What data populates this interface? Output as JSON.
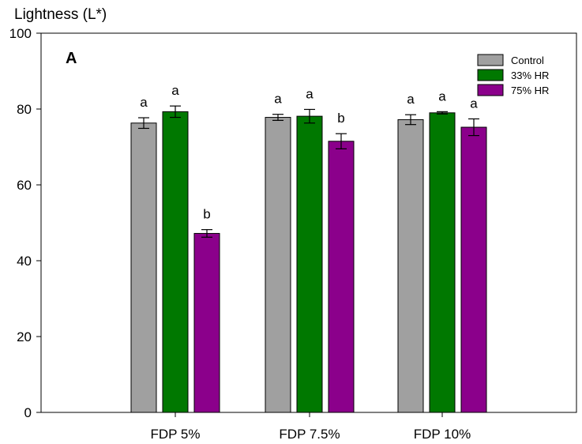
{
  "chart_data": {
    "type": "bar",
    "ylabel": "Lightness (L*)",
    "panel_label": "A",
    "categories": [
      "FDP 5%",
      "FDP 7.5%",
      "FDP 10%"
    ],
    "ylim": [
      0,
      100
    ],
    "yticks": [
      0,
      20,
      40,
      60,
      80,
      100
    ],
    "grid": false,
    "legend_position": "top-right",
    "series": [
      {
        "name": "Control",
        "color": "#a0a0a0",
        "values": [
          76.3,
          77.8,
          77.2
        ],
        "errors": [
          1.4,
          0.8,
          1.3
        ],
        "letters": [
          "a",
          "a",
          "a"
        ]
      },
      {
        "name": "33% HR",
        "color": "#007800",
        "values": [
          79.3,
          78.1,
          79.0
        ],
        "errors": [
          1.5,
          1.8,
          0.3
        ],
        "letters": [
          "a",
          "a",
          "a"
        ]
      },
      {
        "name": "75% HR",
        "color": "#8b008b",
        "values": [
          47.2,
          71.5,
          75.2
        ],
        "errors": [
          1.0,
          2.0,
          2.2
        ],
        "letters": [
          "b",
          "b",
          "a"
        ]
      }
    ]
  }
}
